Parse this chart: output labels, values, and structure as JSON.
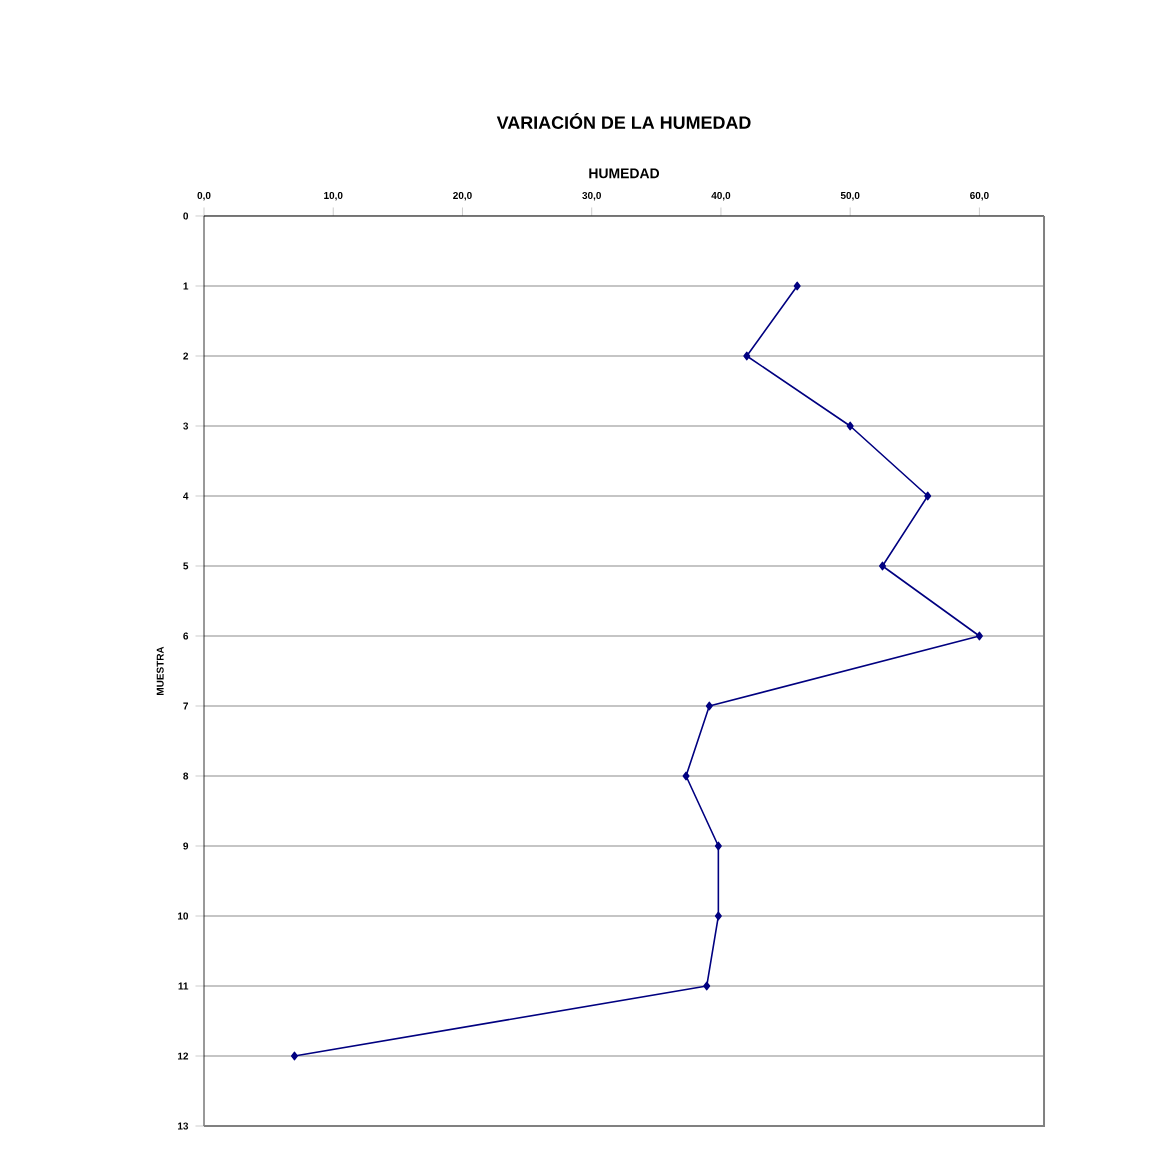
{
  "chart_data": {
    "type": "line",
    "title": "VARIACIÓN DE LA HUMEDAD",
    "xlabel": "HUMEDAD",
    "ylabel": "MUESTRA",
    "series": [
      {
        "x": [
          45.9,
          42.0,
          50.0,
          56.0,
          52.5,
          60.0,
          39.1,
          37.3,
          39.8,
          39.8,
          38.9,
          7.0
        ],
        "values": [
          1,
          2,
          3,
          4,
          5,
          6,
          7,
          8,
          9,
          10,
          11,
          12
        ],
        "color": "#000080"
      }
    ],
    "xlim": [
      0,
      65
    ],
    "xticks": [
      {
        "value": 0,
        "label": "0,0"
      },
      {
        "value": 10,
        "label": "10,0"
      },
      {
        "value": 20,
        "label": "20,0"
      },
      {
        "value": 30,
        "label": "30,0"
      },
      {
        "value": 40,
        "label": "40,0"
      },
      {
        "value": 50,
        "label": "50,0"
      },
      {
        "value": 60,
        "label": "60,0"
      }
    ],
    "ylim": [
      13,
      0
    ],
    "yticks": [
      0,
      1,
      2,
      3,
      4,
      5,
      6,
      7,
      8,
      9,
      10,
      11,
      12,
      13
    ],
    "grid": "y",
    "marker": "diamond",
    "line_style": "solid"
  }
}
